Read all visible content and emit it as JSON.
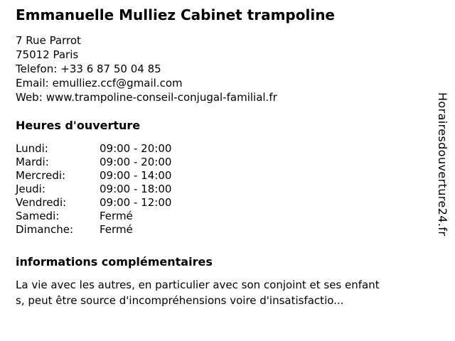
{
  "header": {
    "title": "Emmanuelle Mulliez Cabinet trampoline"
  },
  "contact": {
    "street": "7 Rue Parrot",
    "city": "75012 Paris",
    "phone_label": "Telefon:",
    "phone_value": "+33 6 87 50 04 85",
    "email_label": "Email:",
    "email_value": "emulliez.ccf@gmail.com",
    "web_label": "Web:",
    "web_value": "www.trampoline-conseil-conjugal-familial.fr"
  },
  "opening_hours": {
    "heading": "Heures d'ouverture",
    "rows": [
      {
        "day": "Lundi:",
        "hours": "09:00 - 20:00"
      },
      {
        "day": "Mardi:",
        "hours": "09:00 - 20:00"
      },
      {
        "day": "Mercredi:",
        "hours": "09:00 - 14:00"
      },
      {
        "day": "Jeudi:",
        "hours": "09:00 - 18:00"
      },
      {
        "day": "Vendredi:",
        "hours": "09:00 - 12:00"
      },
      {
        "day": "Samedi:",
        "hours": "Fermé"
      },
      {
        "day": "Dimanche:",
        "hours": "Fermé"
      }
    ]
  },
  "additional_info": {
    "heading": "informations complémentaires",
    "line1": "La vie avec les autres, en particulier avec son conjoint et ses enfant",
    "line2": "s, peut être source d'incompréhensions voire d'insatisfactio..."
  },
  "watermark": {
    "label": "Horairesdouverture24.fr"
  },
  "colors": {
    "background": "#ffffff",
    "text": "#000000"
  }
}
